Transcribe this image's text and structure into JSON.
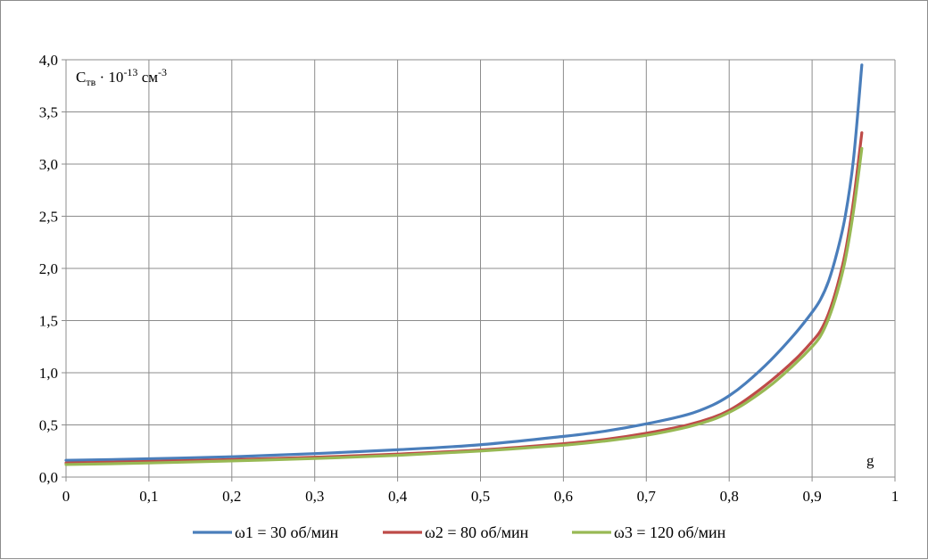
{
  "chart_data": {
    "type": "line",
    "ylabel_parts": {
      "base": "C",
      "sub": "тв",
      "mid": " · 10",
      "exp": "-13",
      "unit": " см",
      "unit_exp": "-3"
    },
    "xlabel": "g",
    "xlim": [
      0,
      1
    ],
    "ylim": [
      0,
      4.0
    ],
    "x_ticks": [
      "0",
      "0,1",
      "0,2",
      "0,3",
      "0,4",
      "0,5",
      "0,6",
      "0,7",
      "0,8",
      "0,9",
      "1"
    ],
    "y_ticks": [
      "0,0",
      "0,5",
      "1,0",
      "1,5",
      "2,0",
      "2,5",
      "3,0",
      "3,5",
      "4,0"
    ],
    "grid": true,
    "legend_position": "bottom",
    "series": [
      {
        "name": "ω1 = 30 об/мин",
        "color": "#4a7ebb",
        "points": [
          [
            0,
            0.16
          ],
          [
            0.1,
            0.175
          ],
          [
            0.2,
            0.195
          ],
          [
            0.3,
            0.225
          ],
          [
            0.4,
            0.262
          ],
          [
            0.5,
            0.31
          ],
          [
            0.6,
            0.39
          ],
          [
            0.65,
            0.44
          ],
          [
            0.7,
            0.51
          ],
          [
            0.75,
            0.6
          ],
          [
            0.78,
            0.69
          ],
          [
            0.8,
            0.78
          ],
          [
            0.82,
            0.9
          ],
          [
            0.85,
            1.12
          ],
          [
            0.88,
            1.38
          ],
          [
            0.9,
            1.58
          ],
          [
            0.91,
            1.7
          ],
          [
            0.92,
            1.88
          ],
          [
            0.93,
            2.15
          ],
          [
            0.94,
            2.5
          ],
          [
            0.95,
            3.05
          ],
          [
            0.96,
            3.95
          ]
        ]
      },
      {
        "name": "ω2 = 80 об/мин",
        "color": "#be4b48",
        "points": [
          [
            0,
            0.135
          ],
          [
            0.1,
            0.15
          ],
          [
            0.2,
            0.168
          ],
          [
            0.3,
            0.19
          ],
          [
            0.4,
            0.22
          ],
          [
            0.5,
            0.26
          ],
          [
            0.6,
            0.32
          ],
          [
            0.65,
            0.36
          ],
          [
            0.7,
            0.42
          ],
          [
            0.75,
            0.5
          ],
          [
            0.78,
            0.57
          ],
          [
            0.8,
            0.64
          ],
          [
            0.82,
            0.74
          ],
          [
            0.85,
            0.92
          ],
          [
            0.88,
            1.13
          ],
          [
            0.9,
            1.3
          ],
          [
            0.91,
            1.4
          ],
          [
            0.92,
            1.57
          ],
          [
            0.93,
            1.82
          ],
          [
            0.94,
            2.15
          ],
          [
            0.95,
            2.65
          ],
          [
            0.96,
            3.3
          ]
        ]
      },
      {
        "name": "ω3 = 120 об/мин",
        "color": "#98b954",
        "points": [
          [
            0,
            0.12
          ],
          [
            0.1,
            0.135
          ],
          [
            0.2,
            0.155
          ],
          [
            0.3,
            0.178
          ],
          [
            0.4,
            0.208
          ],
          [
            0.5,
            0.25
          ],
          [
            0.6,
            0.305
          ],
          [
            0.65,
            0.345
          ],
          [
            0.7,
            0.4
          ],
          [
            0.75,
            0.48
          ],
          [
            0.78,
            0.55
          ],
          [
            0.8,
            0.62
          ],
          [
            0.82,
            0.71
          ],
          [
            0.85,
            0.88
          ],
          [
            0.88,
            1.09
          ],
          [
            0.9,
            1.25
          ],
          [
            0.91,
            1.35
          ],
          [
            0.92,
            1.52
          ],
          [
            0.93,
            1.76
          ],
          [
            0.94,
            2.08
          ],
          [
            0.95,
            2.55
          ],
          [
            0.96,
            3.15
          ]
        ]
      }
    ]
  }
}
